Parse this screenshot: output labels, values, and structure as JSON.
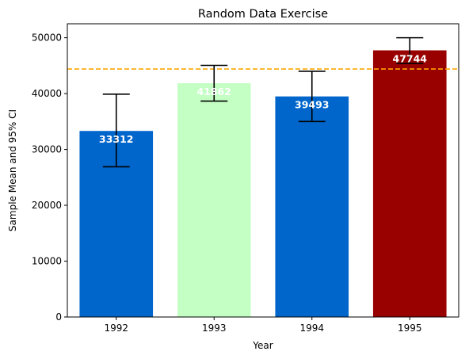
{
  "chart_data": {
    "type": "bar",
    "title": "Random Data Exercise",
    "xlabel": "Year",
    "ylabel": "Sample Mean and 95% CI",
    "categories": [
      "1992",
      "1993",
      "1994",
      "1995"
    ],
    "values": [
      33312,
      41862,
      39493,
      47744
    ],
    "value_labels": [
      "33312",
      "41862",
      "39493",
      "47744"
    ],
    "error_low": [
      26900,
      38650,
      35000,
      45400
    ],
    "error_high": [
      39900,
      45050,
      44000,
      50000
    ],
    "bar_colors": [
      "#0066cc",
      "#c4ffc4",
      "#0066cc",
      "#990000"
    ],
    "reference_line": {
      "value": 44400,
      "color": "#ffa500",
      "style": "dashed"
    },
    "ylim": [
      0,
      52500
    ],
    "yticks": [
      0,
      10000,
      20000,
      30000,
      40000,
      50000
    ],
    "ytick_labels": [
      "0",
      "10000",
      "20000",
      "30000",
      "40000",
      "50000"
    ],
    "grid": false,
    "legend": "none"
  }
}
